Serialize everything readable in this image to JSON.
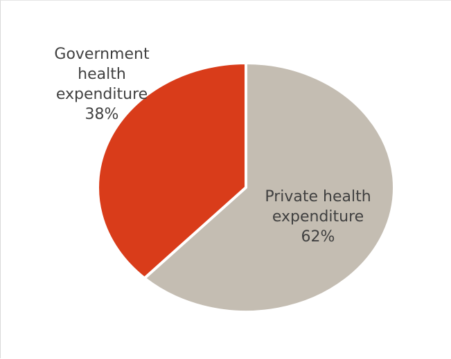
{
  "chart_data": {
    "type": "pie",
    "title": "",
    "slices": [
      {
        "label_lines": [
          "Private health",
          "expenditure",
          "62%"
        ],
        "value": 62,
        "color": "#c4bdb2"
      },
      {
        "label_lines": [
          "Government",
          "health",
          "expenditure",
          "38%"
        ],
        "value": 38,
        "color": "#d93c1a"
      }
    ],
    "legend": "none",
    "slice_border_color": "#ffffff"
  }
}
